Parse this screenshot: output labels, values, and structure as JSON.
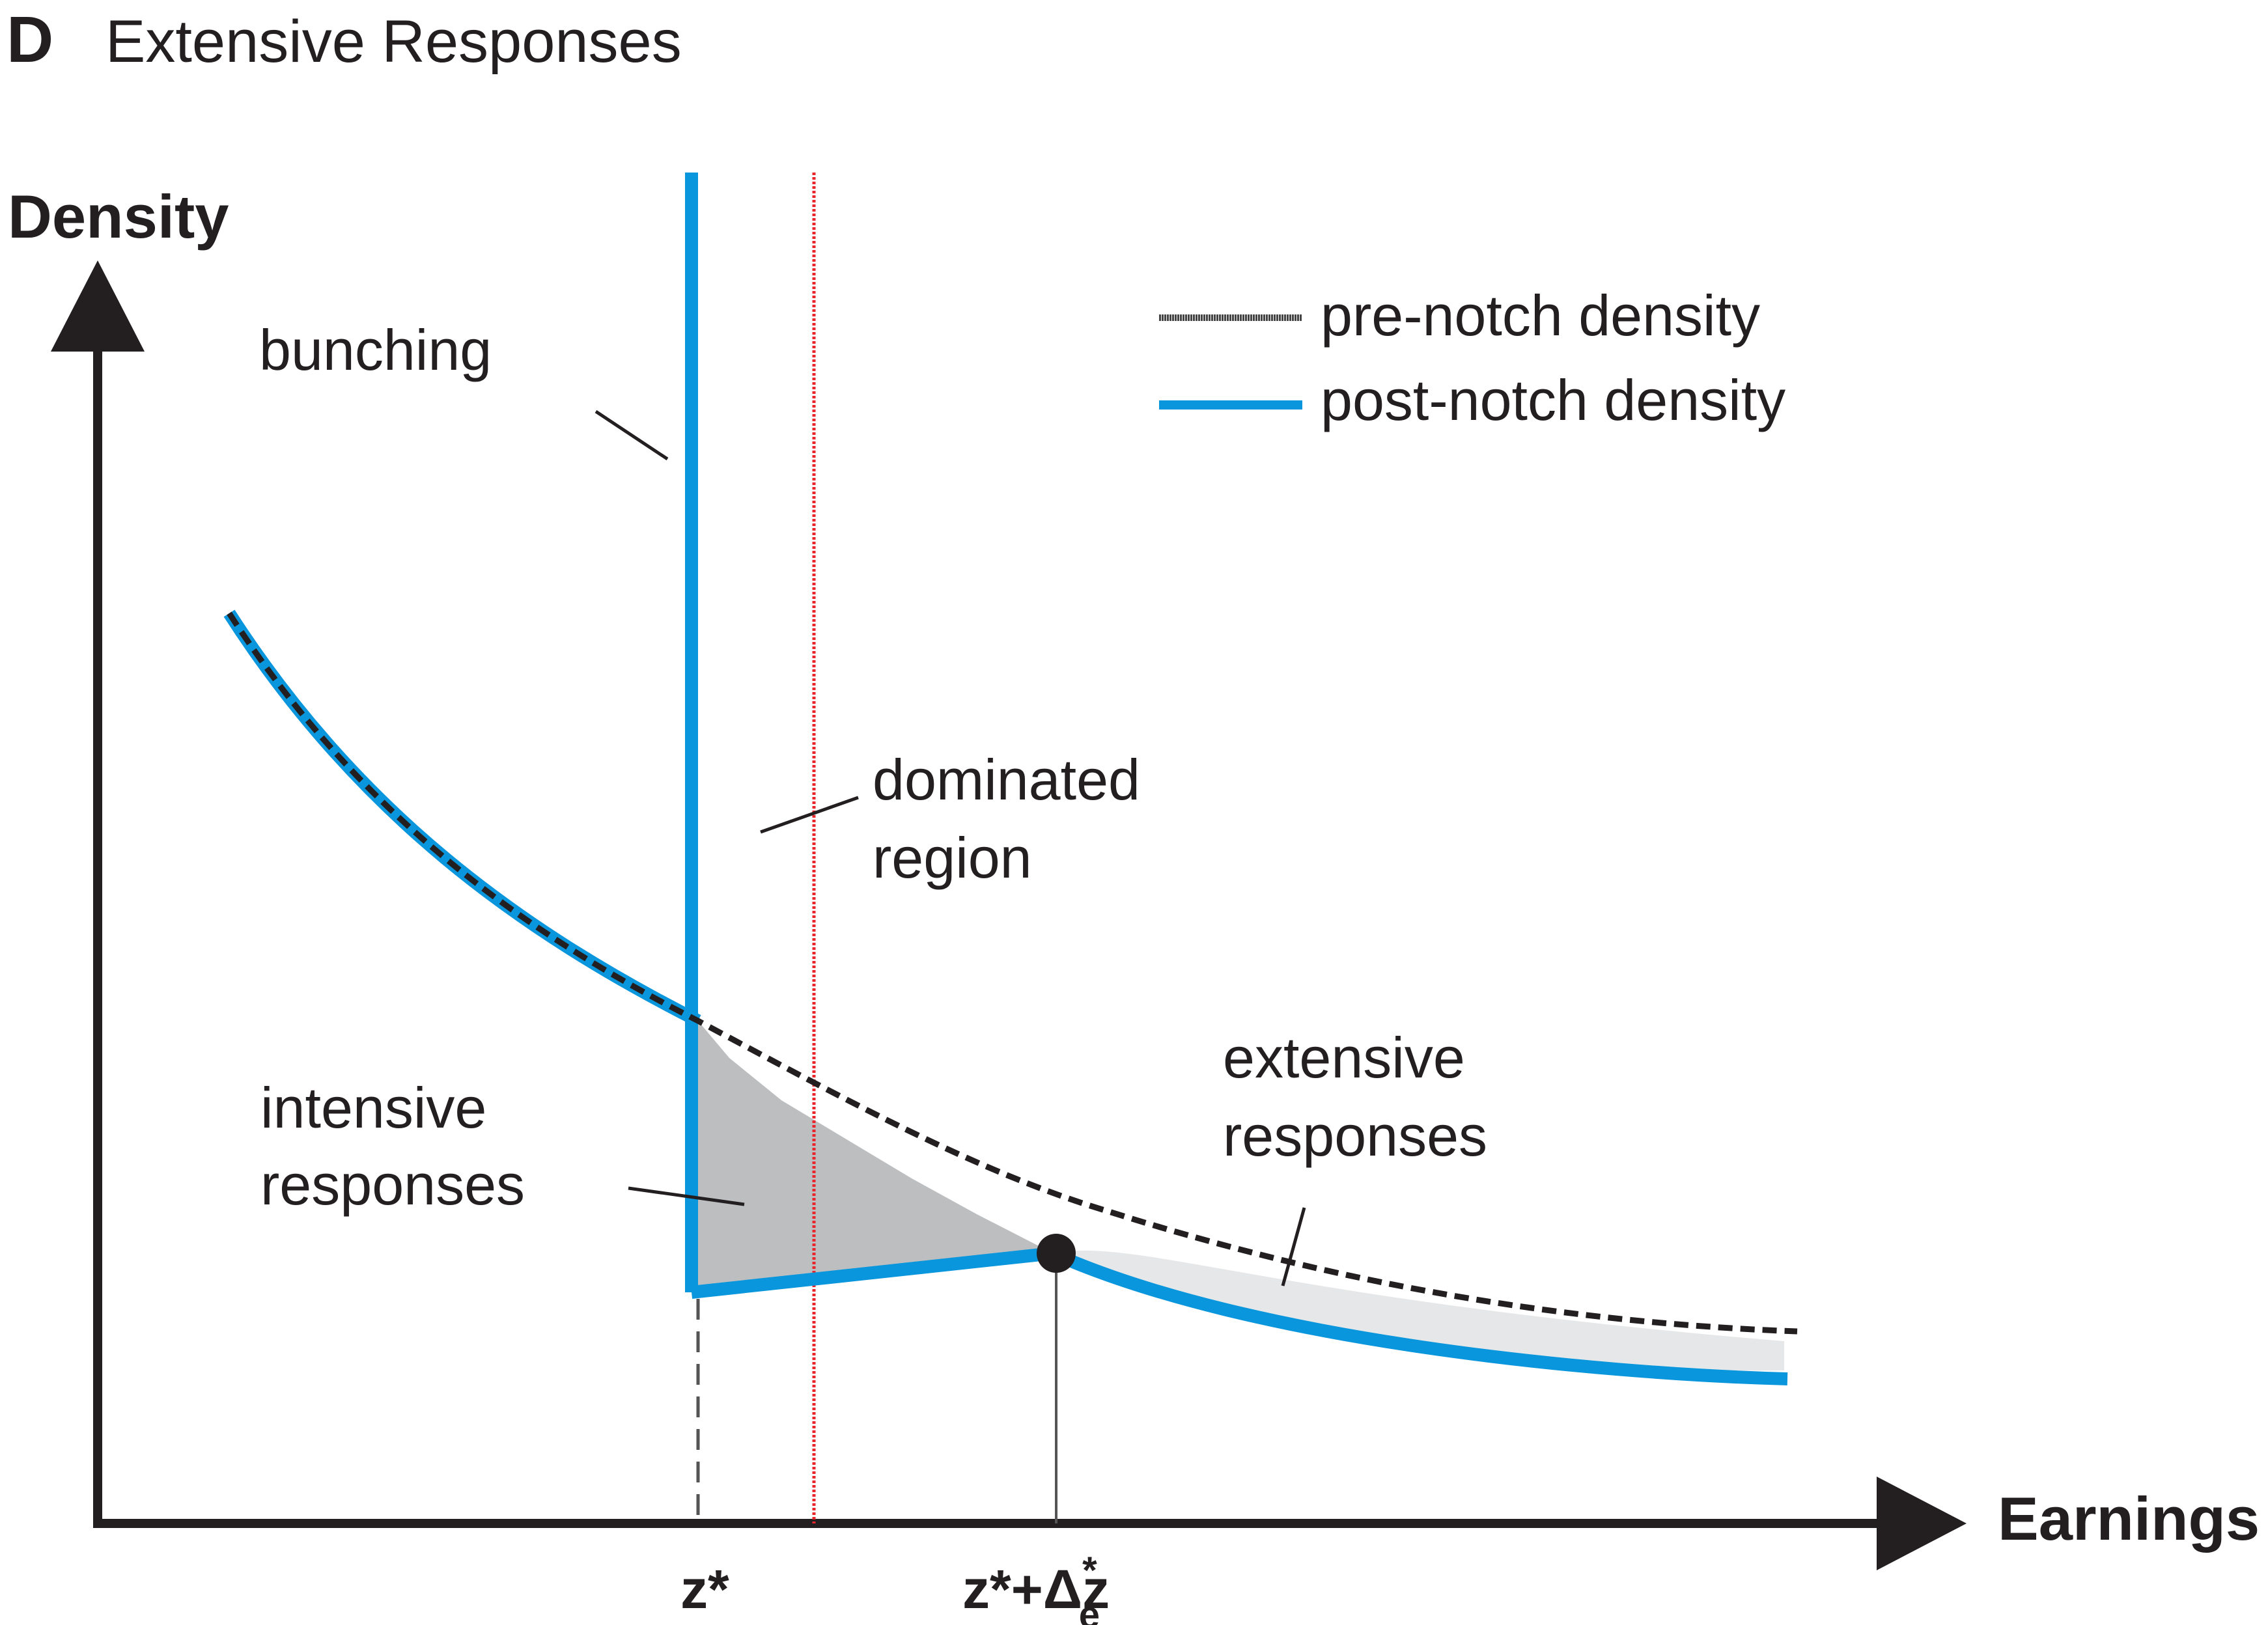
{
  "panel": {
    "letter": "D",
    "title": "Extensive Responses"
  },
  "axes": {
    "y_label": "Density",
    "x_label": "Earnings"
  },
  "legend": [
    {
      "label": "pre-notch density",
      "color": "#333333",
      "style": "dashed"
    },
    {
      "label": "post-notch density",
      "color": "#0a96dc",
      "style": "solid"
    }
  ],
  "annotations": {
    "bunching": "bunching",
    "dominated_line1": "dominated",
    "dominated_line2": "region",
    "intensive_line1": "intensive",
    "intensive_line2": "responses",
    "extensive_line1": "extensive",
    "extensive_line2": "responses"
  },
  "ticks": {
    "z_star": "z*",
    "z_e_base": "z*+Δz",
    "z_e_sup": "*",
    "z_e_sub": "e"
  },
  "colors": {
    "post_notch": "#0a96dc",
    "pre_notch": "#231f20",
    "dominated_line": "#e8262c",
    "intensive_fill": "#bcbec0",
    "extensive_fill": "#e6e7e8",
    "axis": "#231f20"
  }
}
